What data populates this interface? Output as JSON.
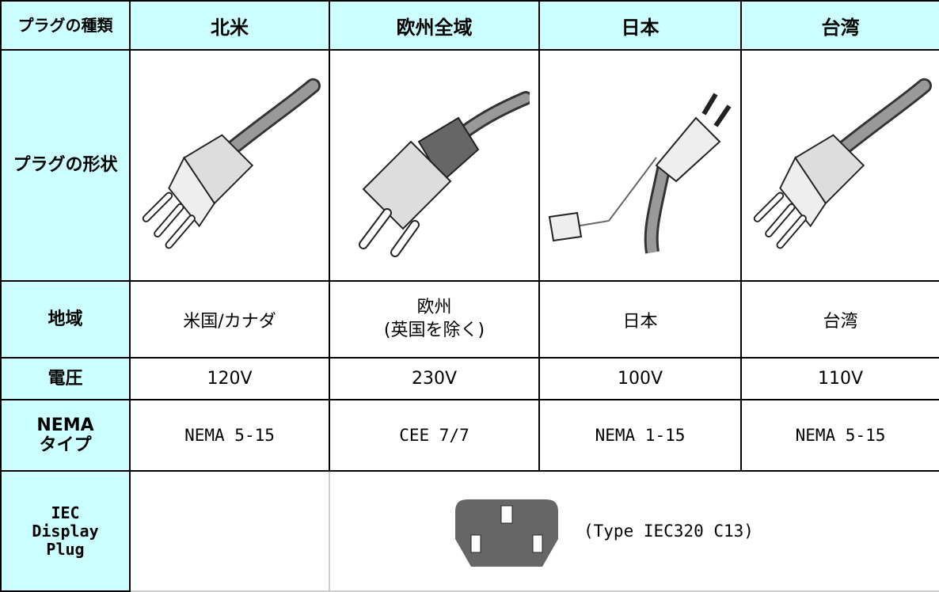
{
  "table": {
    "header": [
      "プラグの種類",
      "北米",
      "欧州全域",
      "日本",
      "台湾"
    ],
    "rows": [
      [
        "プラグの形状"
      ],
      [
        "地域",
        "米国/カナダ",
        "欧州\n(英国を除く)",
        "日本",
        "台湾"
      ],
      [
        "電圧",
        "120V",
        "230V",
        "100V",
        "110V"
      ],
      [
        "NEMA\nタイプ",
        "NEMA 5-15",
        "CEE 7/7",
        "NEMA 1-15",
        "NEMA 5-15"
      ],
      [
        "IEC\nDisplay\nPlug",
        "(Type IEC320 C13)"
      ]
    ]
  }
}
